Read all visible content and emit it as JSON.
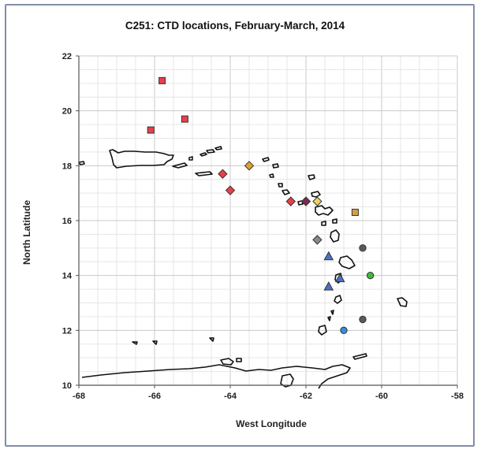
{
  "chart_data": {
    "type": "scatter",
    "title": "C251: CTD locations, February-March, 2014",
    "xlabel": "West Longitude",
    "ylabel": "North Latitude",
    "xlim": [
      -68,
      -58
    ],
    "ylim": [
      10,
      22
    ],
    "x_ticks": [
      "-68",
      "-66",
      "-64",
      "-62",
      "-60",
      "-58"
    ],
    "y_ticks": [
      "10",
      "12",
      "14",
      "16",
      "18",
      "20",
      "22"
    ],
    "grid": true,
    "legend": "none",
    "series": [
      {
        "marker": "square",
        "color": "#e8404a",
        "points": [
          [
            -65.8,
            21.1
          ],
          [
            -65.2,
            19.7
          ],
          [
            -66.1,
            19.3
          ]
        ]
      },
      {
        "marker": "diamond",
        "color": "#e8404a",
        "points": [
          [
            -64.2,
            17.7
          ],
          [
            -64.0,
            17.1
          ],
          [
            -62.4,
            16.7
          ]
        ]
      },
      {
        "marker": "diamond",
        "color": "#e0a030",
        "points": [
          [
            -63.5,
            18.0
          ]
        ]
      },
      {
        "marker": "diamond",
        "color": "#7a2a50",
        "points": [
          [
            -62.0,
            16.7
          ]
        ]
      },
      {
        "marker": "diamond",
        "color": "#f0d060",
        "points": [
          [
            -61.7,
            16.7
          ]
        ]
      },
      {
        "marker": "square",
        "color": "#d8a040",
        "points": [
          [
            -60.7,
            16.3
          ]
        ]
      },
      {
        "marker": "diamond",
        "color": "#8a8a8a",
        "points": [
          [
            -61.7,
            15.3
          ]
        ]
      },
      {
        "marker": "circle",
        "color": "#5a5a5a",
        "points": [
          [
            -60.5,
            15.0
          ],
          [
            -60.5,
            12.4
          ]
        ]
      },
      {
        "marker": "triangle",
        "color": "#4a72c8",
        "points": [
          [
            -61.4,
            14.7
          ],
          [
            -61.1,
            13.9
          ],
          [
            -61.4,
            13.6
          ]
        ]
      },
      {
        "marker": "circle",
        "color": "#40b840",
        "points": [
          [
            -60.3,
            14.0
          ]
        ]
      },
      {
        "marker": "circle",
        "color": "#3a8ae0",
        "points": [
          [
            -61.0,
            12.0
          ]
        ]
      }
    ]
  }
}
